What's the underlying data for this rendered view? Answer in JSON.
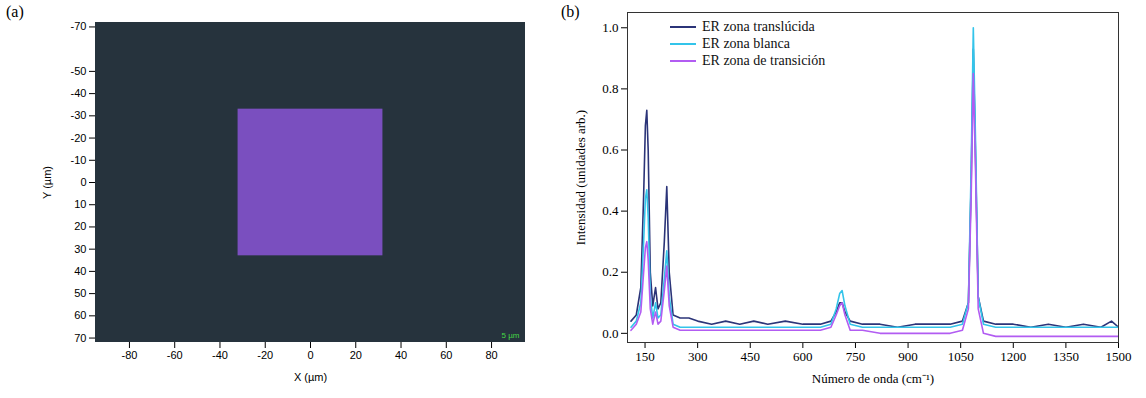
{
  "chart_data": [
    {
      "type": "image",
      "title": "(a)",
      "xlabel": "X (µm)",
      "ylabel": "Y (µm)",
      "xlim": [
        -95,
        95
      ],
      "ylim": [
        72,
        -72
      ],
      "xticks": [
        -80,
        -60,
        -40,
        -20,
        0,
        20,
        40,
        60,
        80
      ],
      "yticks": [
        -70,
        -50,
        -40,
        -30,
        -20,
        -10,
        0,
        10,
        20,
        30,
        40,
        50,
        60,
        70
      ],
      "map_extent": {
        "x": [
          -32,
          32
        ],
        "y": [
          -33,
          33
        ]
      },
      "annotations": [
        "5 µm"
      ]
    },
    {
      "type": "line",
      "title": "(b)",
      "xlabel": "Número de onda (cm⁻¹)",
      "ylabel": "Intensidad (unidades arb.)",
      "xlim": [
        100,
        1500
      ],
      "ylim": [
        -0.03,
        1.05
      ],
      "xticks": [
        150,
        300,
        450,
        600,
        750,
        900,
        1050,
        1200,
        1350,
        1500
      ],
      "yticks": [
        {
          "value": 0,
          "label": "0.0"
        },
        0.2,
        0.4,
        0.6,
        0.8,
        {
          "value": 1,
          "label": "1.0"
        }
      ],
      "legend": "upper left",
      "x": [
        110,
        125,
        138,
        146,
        151,
        155,
        159,
        165,
        172,
        180,
        187,
        195,
        205,
        212,
        219,
        230,
        250,
        275,
        300,
        340,
        380,
        420,
        460,
        500,
        550,
        600,
        650,
        680,
        695,
        705,
        712,
        720,
        735,
        770,
        820,
        870,
        920,
        970,
        1020,
        1055,
        1072,
        1080,
        1086,
        1092,
        1100,
        1115,
        1150,
        1200,
        1250,
        1300,
        1350,
        1400,
        1450,
        1480,
        1500
      ],
      "series": [
        {
          "name": "ER zona translúcida",
          "color": "#2b3478",
          "values": [
            0.04,
            0.06,
            0.15,
            0.45,
            0.68,
            0.73,
            0.6,
            0.2,
            0.09,
            0.15,
            0.08,
            0.1,
            0.3,
            0.48,
            0.2,
            0.06,
            0.05,
            0.05,
            0.04,
            0.03,
            0.04,
            0.03,
            0.04,
            0.03,
            0.04,
            0.03,
            0.03,
            0.04,
            0.07,
            0.1,
            0.1,
            0.07,
            0.04,
            0.03,
            0.03,
            0.02,
            0.03,
            0.03,
            0.03,
            0.04,
            0.1,
            0.5,
            0.93,
            0.6,
            0.12,
            0.04,
            0.03,
            0.03,
            0.02,
            0.03,
            0.02,
            0.03,
            0.02,
            0.04,
            0.02
          ]
        },
        {
          "name": "ER zona blanca",
          "color": "#33c4ea",
          "values": [
            0.02,
            0.04,
            0.1,
            0.3,
            0.44,
            0.47,
            0.38,
            0.12,
            0.05,
            0.1,
            0.05,
            0.06,
            0.18,
            0.27,
            0.12,
            0.03,
            0.02,
            0.02,
            0.02,
            0.02,
            0.02,
            0.02,
            0.02,
            0.02,
            0.02,
            0.02,
            0.02,
            0.03,
            0.08,
            0.13,
            0.14,
            0.09,
            0.03,
            0.02,
            0.02,
            0.02,
            0.02,
            0.02,
            0.02,
            0.03,
            0.1,
            0.55,
            1.0,
            0.65,
            0.12,
            0.03,
            0.02,
            0.02,
            0.02,
            0.02,
            0.02,
            0.02,
            0.02,
            0.02,
            0.02
          ]
        },
        {
          "name": "ER zona de transición",
          "color": "#b25cf2",
          "values": [
            0.01,
            0.03,
            0.07,
            0.2,
            0.28,
            0.3,
            0.24,
            0.08,
            0.03,
            0.07,
            0.03,
            0.04,
            0.14,
            0.22,
            0.09,
            0.02,
            0.01,
            0.01,
            0.01,
            0.01,
            0.01,
            0.01,
            0.01,
            0.01,
            0.01,
            0.01,
            0.01,
            0.02,
            0.06,
            0.09,
            0.1,
            0.06,
            0.01,
            0.01,
            0.0,
            0.0,
            0.0,
            0.0,
            0.0,
            0.01,
            0.08,
            0.45,
            0.85,
            0.55,
            0.08,
            0.0,
            -0.01,
            -0.01,
            -0.01,
            -0.01,
            -0.01,
            -0.01,
            -0.01,
            -0.01,
            -0.01
          ]
        }
      ]
    }
  ]
}
